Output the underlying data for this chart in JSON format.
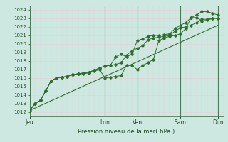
{
  "bg_color": "#cce8e0",
  "grid_color": "#e8d0d8",
  "line_color": "#2d6e2d",
  "xlabel": "Pression niveau de la mer( hPa )",
  "ylim": [
    1011.5,
    1024.5
  ],
  "yticks": [
    1012,
    1013,
    1014,
    1015,
    1016,
    1017,
    1018,
    1019,
    1020,
    1021,
    1022,
    1023,
    1024
  ],
  "xtick_labels": [
    "Jeu",
    "",
    "Lun",
    "Ven",
    "",
    "Sam",
    "",
    "Dim"
  ],
  "xtick_positions": [
    0,
    3.5,
    7,
    10,
    12,
    14,
    16,
    17.5
  ],
  "xlim": [
    0,
    18
  ],
  "vlines": [
    0,
    7,
    10,
    14,
    17.5
  ],
  "line1": {
    "x": [
      0,
      0.5,
      1,
      1.5,
      2,
      2.5,
      3,
      3.5,
      4,
      4.5,
      5,
      5.5,
      6,
      6.5,
      7,
      7.5,
      8,
      8.5,
      9,
      9.5,
      10,
      10.5,
      11,
      11.5,
      12,
      12.5,
      13,
      13.5,
      14,
      14.5,
      15,
      15.5,
      16,
      16.5,
      17,
      17.5
    ],
    "y": [
      1012.2,
      1013.0,
      1013.4,
      1014.5,
      1015.7,
      1016.0,
      1016.1,
      1016.2,
      1016.4,
      1016.5,
      1016.5,
      1016.6,
      1016.8,
      1017.0,
      1016.0,
      1016.1,
      1016.2,
      1016.3,
      1017.5,
      1017.5,
      1017.0,
      1017.5,
      1017.8,
      1018.2,
      1020.4,
      1020.7,
      1020.9,
      1021.0,
      1021.2,
      1021.8,
      1023.1,
      1023.1,
      1022.7,
      1022.8,
      1023.0,
      1023.0
    ]
  },
  "line2": {
    "x": [
      0,
      0.5,
      1,
      1.5,
      2,
      2.5,
      3,
      3.5,
      4,
      4.5,
      5,
      5.5,
      6,
      6.5,
      7,
      7.5,
      8,
      8.5,
      9,
      9.5,
      10,
      10.5,
      11,
      11.5,
      12,
      12.5,
      13,
      13.5,
      14,
      14.5,
      15,
      15.5,
      16,
      16.5,
      17,
      17.5
    ],
    "y": [
      1012.2,
      1013.0,
      1013.4,
      1014.5,
      1015.7,
      1016.0,
      1016.1,
      1016.2,
      1016.4,
      1016.5,
      1016.6,
      1016.7,
      1016.9,
      1017.2,
      1017.4,
      1017.5,
      1018.5,
      1018.8,
      1018.5,
      1018.8,
      1020.4,
      1020.6,
      1020.9,
      1021.0,
      1021.0,
      1021.1,
      1021.2,
      1021.8,
      1022.2,
      1022.5,
      1023.1,
      1023.4,
      1023.8,
      1023.8,
      1023.6,
      1023.4
    ]
  },
  "line3": {
    "x": [
      0,
      0.5,
      1,
      1.5,
      2,
      2.5,
      3,
      3.5,
      4,
      4.5,
      5,
      5.5,
      6,
      6.5,
      7,
      7.5,
      8,
      8.5,
      9,
      9.5,
      10,
      10.5,
      11,
      11.5,
      12,
      12.5,
      13,
      13.5,
      14,
      14.5,
      15,
      15.5,
      16,
      16.5,
      17,
      17.5
    ],
    "y": [
      1012.2,
      1013.0,
      1013.4,
      1014.5,
      1015.7,
      1016.0,
      1016.1,
      1016.2,
      1016.4,
      1016.5,
      1016.6,
      1016.7,
      1016.9,
      1017.2,
      1017.4,
      1017.5,
      1017.6,
      1017.8,
      1018.7,
      1019.2,
      1019.5,
      1019.8,
      1020.5,
      1020.7,
      1020.8,
      1020.9,
      1021.0,
      1021.5,
      1021.9,
      1022.0,
      1022.2,
      1022.5,
      1022.9,
      1022.9,
      1023.0,
      1023.0
    ]
  },
  "line_trend": {
    "x": [
      0,
      17.5
    ],
    "y": [
      1012.2,
      1022.2
    ]
  }
}
